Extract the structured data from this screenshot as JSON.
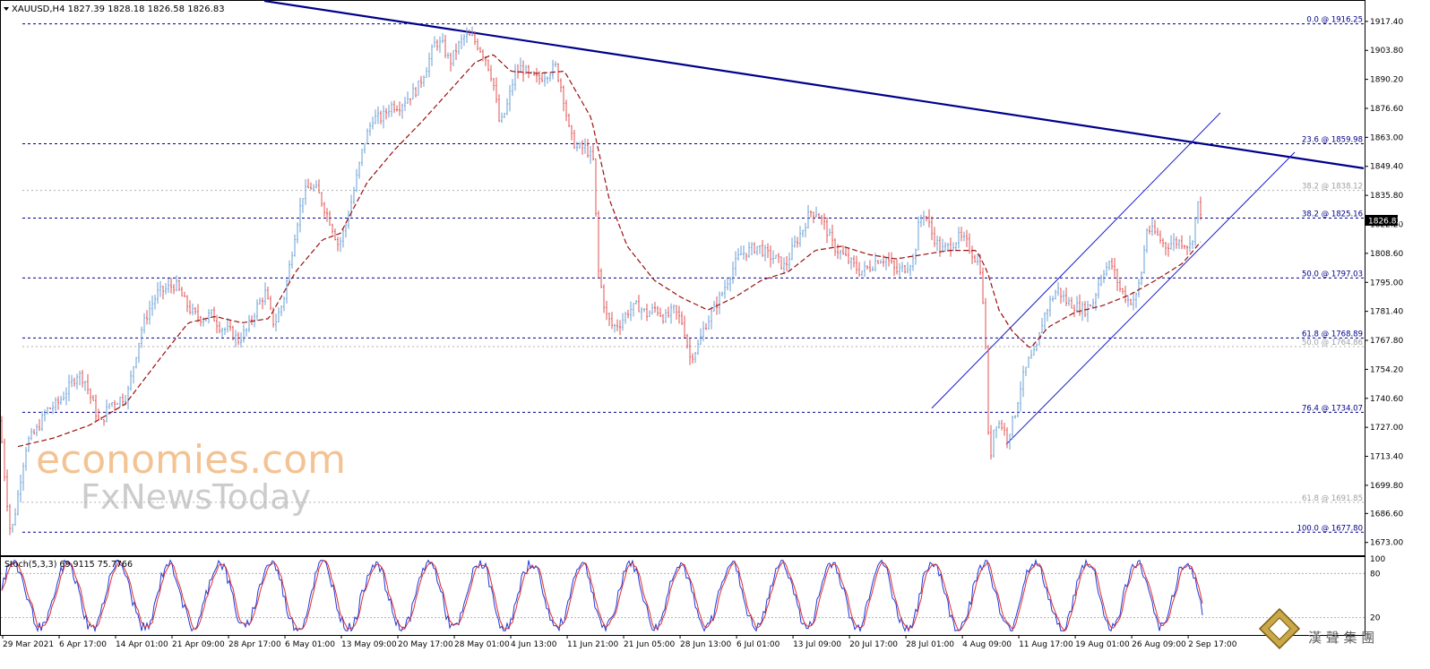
{
  "header": {
    "symbol_line": "XAUUSD,H4  1827.39 1828.18 1826.58 1826.83"
  },
  "stoch": {
    "label": "Stoch(5,3,3) 69.9115 75.7766",
    "scale_labels": [
      "100",
      "80",
      "20"
    ],
    "k_color": "#1e3adc",
    "d_color": "#e03030"
  },
  "watermark": {
    "line1": "economies.com",
    "line2": "FxNewsToday",
    "corner_logo": "漢 聲 集 團"
  },
  "colors": {
    "up_bar": "#6a9fd4",
    "down_bar": "#e05050",
    "ma_line": "#9a1010",
    "trendline": "#00008b",
    "channel": "#1a1acc",
    "fib_line": "#00008b",
    "fib_line_light": "#b0b0b0",
    "price_box": "#000000"
  },
  "chart_data": {
    "type": "line",
    "title": "XAUUSD,H4",
    "ohlc_last": {
      "open": 1827.39,
      "high": 1828.18,
      "low": 1826.58,
      "close": 1826.83
    },
    "current_price": "1826.83",
    "ylim": [
      1667,
      1927
    ],
    "y_ticks": [
      1917.4,
      1903.8,
      1890.2,
      1876.6,
      1863.0,
      1849.4,
      1835.8,
      1822.2,
      1808.6,
      1795.0,
      1781.4,
      1767.8,
      1754.2,
      1740.6,
      1727.0,
      1713.4,
      1699.8,
      1686.6,
      1673.0
    ],
    "y_tick_labels": [
      "1917.40",
      "1903.80",
      "1890.20",
      "1876.60",
      "1863.00",
      "1849.40",
      "1835.80",
      "1822.20",
      "1808.60",
      "1795.00",
      "1781.40",
      "1767.80",
      "1754.20",
      "1740.60",
      "1727.00",
      "1713.40",
      "1699.80",
      "1686.60",
      "1673.00"
    ],
    "x_labels": [
      "29 Mar 2021",
      "6 Apr 17:00",
      "14 Apr 01:00",
      "21 Apr 09:00",
      "28 Apr 17:00",
      "6 May 01:00",
      "13 May 09:00",
      "20 May 17:00",
      "28 May 01:00",
      "4 Jun 13:00",
      "11 Jun 21:00",
      "21 Jun 05:00",
      "28 Jun 13:00",
      "6 Jul 01:00",
      "13 Jul 09:00",
      "20 Jul 17:00",
      "28 Jul 01:00",
      "4 Aug 09:00",
      "11 Aug 17:00",
      "19 Aug 01:00",
      "26 Aug 09:00",
      "2 Sep 17:00"
    ],
    "fib_levels": [
      {
        "label": "0.0 @ 1916.25",
        "value": 1916.25,
        "style": "dark"
      },
      {
        "label": "23.6 @ 1859.98",
        "value": 1859.98,
        "style": "dark"
      },
      {
        "label": "38.2 @ 1838.12",
        "value": 1838.12,
        "style": "light"
      },
      {
        "label": "38.2 @ 1825.16",
        "value": 1825.16,
        "style": "dark"
      },
      {
        "label": "50.0 @ 1797.03",
        "value": 1797.03,
        "style": "dark"
      },
      {
        "label": "61.8 @ 1768.89",
        "value": 1768.89,
        "style": "dark"
      },
      {
        "label": "50.0 @ 1764.86",
        "value": 1764.86,
        "style": "light"
      },
      {
        "label": "76.4 @ 1734.07",
        "value": 1734.07,
        "style": "dark"
      },
      {
        "label": "61.8 @ 1691.85",
        "value": 1691.85,
        "style": "light"
      },
      {
        "label": "100.0 @ 1677.80",
        "value": 1677.8,
        "style": "dark"
      }
    ],
    "price_anchors": [
      [
        0,
        1730
      ],
      [
        6,
        1700
      ],
      [
        12,
        1676
      ],
      [
        18,
        1690
      ],
      [
        24,
        1706
      ],
      [
        30,
        1720
      ],
      [
        40,
        1725
      ],
      [
        52,
        1735
      ],
      [
        64,
        1738
      ],
      [
        76,
        1745
      ],
      [
        86,
        1752
      ],
      [
        94,
        1750
      ],
      [
        102,
        1740
      ],
      [
        112,
        1728
      ],
      [
        122,
        1738
      ],
      [
        132,
        1740
      ],
      [
        142,
        1742
      ],
      [
        150,
        1758
      ],
      [
        158,
        1773
      ],
      [
        166,
        1782
      ],
      [
        176,
        1790
      ],
      [
        186,
        1792
      ],
      [
        196,
        1794
      ],
      [
        206,
        1786
      ],
      [
        216,
        1780
      ],
      [
        226,
        1778
      ],
      [
        236,
        1780
      ],
      [
        246,
        1774
      ],
      [
        256,
        1772
      ],
      [
        266,
        1768
      ],
      [
        276,
        1773
      ],
      [
        286,
        1783
      ],
      [
        296,
        1790
      ],
      [
        306,
        1775
      ],
      [
        316,
        1786
      ],
      [
        322,
        1800
      ],
      [
        330,
        1820
      ],
      [
        338,
        1836
      ],
      [
        346,
        1840
      ],
      [
        354,
        1838
      ],
      [
        362,
        1830
      ],
      [
        370,
        1822
      ],
      [
        378,
        1812
      ],
      [
        386,
        1822
      ],
      [
        396,
        1840
      ],
      [
        406,
        1860
      ],
      [
        416,
        1872
      ],
      [
        426,
        1872
      ],
      [
        436,
        1878
      ],
      [
        446,
        1878
      ],
      [
        456,
        1882
      ],
      [
        466,
        1886
      ],
      [
        476,
        1896
      ],
      [
        486,
        1908
      ],
      [
        494,
        1906
      ],
      [
        502,
        1898
      ],
      [
        510,
        1905
      ],
      [
        518,
        1910
      ],
      [
        526,
        1910
      ],
      [
        534,
        1906
      ],
      [
        542,
        1900
      ],
      [
        550,
        1890
      ],
      [
        558,
        1868
      ],
      [
        566,
        1878
      ],
      [
        574,
        1892
      ],
      [
        582,
        1896
      ],
      [
        590,
        1892
      ],
      [
        600,
        1890
      ],
      [
        610,
        1893
      ],
      [
        620,
        1896
      ],
      [
        628,
        1884
      ],
      [
        636,
        1864
      ],
      [
        644,
        1858
      ],
      [
        654,
        1858
      ],
      [
        662,
        1852
      ],
      [
        668,
        1800
      ],
      [
        676,
        1780
      ],
      [
        684,
        1774
      ],
      [
        692,
        1776
      ],
      [
        702,
        1782
      ],
      [
        712,
        1784
      ],
      [
        722,
        1780
      ],
      [
        732,
        1783
      ],
      [
        742,
        1778
      ],
      [
        752,
        1782
      ],
      [
        762,
        1776
      ],
      [
        770,
        1760
      ],
      [
        778,
        1764
      ],
      [
        786,
        1774
      ],
      [
        796,
        1782
      ],
      [
        806,
        1790
      ],
      [
        816,
        1800
      ],
      [
        826,
        1808
      ],
      [
        836,
        1810
      ],
      [
        846,
        1812
      ],
      [
        856,
        1808
      ],
      [
        866,
        1806
      ],
      [
        876,
        1802
      ],
      [
        886,
        1812
      ],
      [
        896,
        1820
      ],
      [
        904,
        1828
      ],
      [
        912,
        1828
      ],
      [
        920,
        1822
      ],
      [
        930,
        1812
      ],
      [
        940,
        1808
      ],
      [
        950,
        1804
      ],
      [
        960,
        1800
      ],
      [
        970,
        1802
      ],
      [
        980,
        1806
      ],
      [
        990,
        1806
      ],
      [
        1000,
        1800
      ],
      [
        1010,
        1802
      ],
      [
        1020,
        1806
      ],
      [
        1026,
        1824
      ],
      [
        1032,
        1828
      ],
      [
        1040,
        1818
      ],
      [
        1050,
        1810
      ],
      [
        1060,
        1812
      ],
      [
        1070,
        1816
      ],
      [
        1078,
        1814
      ],
      [
        1086,
        1808
      ],
      [
        1094,
        1802
      ],
      [
        1100,
        1766
      ],
      [
        1104,
        1708
      ],
      [
        1110,
        1730
      ],
      [
        1118,
        1728
      ],
      [
        1124,
        1722
      ],
      [
        1132,
        1732
      ],
      [
        1140,
        1748
      ],
      [
        1148,
        1758
      ],
      [
        1156,
        1762
      ],
      [
        1164,
        1778
      ],
      [
        1172,
        1786
      ],
      [
        1180,
        1792
      ],
      [
        1190,
        1786
      ],
      [
        1200,
        1784
      ],
      [
        1210,
        1782
      ],
      [
        1220,
        1786
      ],
      [
        1230,
        1800
      ],
      [
        1240,
        1804
      ],
      [
        1250,
        1792
      ],
      [
        1260,
        1786
      ],
      [
        1268,
        1788
      ],
      [
        1274,
        1800
      ],
      [
        1280,
        1820
      ],
      [
        1290,
        1818
      ],
      [
        1300,
        1812
      ],
      [
        1310,
        1814
      ],
      [
        1320,
        1814
      ],
      [
        1328,
        1812
      ],
      [
        1332,
        1818
      ],
      [
        1336,
        1832
      ],
      [
        1342,
        1827
      ]
    ],
    "ma_anchors": [
      [
        20,
        1718
      ],
      [
        60,
        1722
      ],
      [
        100,
        1728
      ],
      [
        140,
        1738
      ],
      [
        180,
        1760
      ],
      [
        210,
        1776
      ],
      [
        240,
        1779
      ],
      [
        270,
        1776
      ],
      [
        300,
        1778
      ],
      [
        330,
        1800
      ],
      [
        360,
        1815
      ],
      [
        380,
        1818
      ],
      [
        410,
        1842
      ],
      [
        440,
        1857
      ],
      [
        470,
        1870
      ],
      [
        500,
        1884
      ],
      [
        530,
        1898
      ],
      [
        550,
        1902
      ],
      [
        570,
        1894
      ],
      [
        600,
        1893
      ],
      [
        630,
        1894
      ],
      [
        660,
        1872
      ],
      [
        680,
        1834
      ],
      [
        700,
        1812
      ],
      [
        730,
        1796
      ],
      [
        760,
        1788
      ],
      [
        790,
        1782
      ],
      [
        820,
        1788
      ],
      [
        850,
        1796
      ],
      [
        880,
        1800
      ],
      [
        910,
        1810
      ],
      [
        940,
        1812
      ],
      [
        970,
        1808
      ],
      [
        1000,
        1806
      ],
      [
        1030,
        1808
      ],
      [
        1060,
        1810
      ],
      [
        1090,
        1810
      ],
      [
        1102,
        1800
      ],
      [
        1115,
        1782
      ],
      [
        1130,
        1772
      ],
      [
        1150,
        1764
      ],
      [
        1170,
        1774
      ],
      [
        1200,
        1781
      ],
      [
        1230,
        1784
      ],
      [
        1260,
        1789
      ],
      [
        1290,
        1796
      ],
      [
        1320,
        1804
      ],
      [
        1342,
        1815
      ]
    ],
    "trendline": {
      "x1": 295,
      "y1": 1927.0,
      "x2": 1522,
      "y2": 1848.5
    },
    "channel_upper": {
      "x1": 1040,
      "y1": 1736.0,
      "x2": 1362,
      "y2": 1874.5
    },
    "channel_lower": {
      "x1": 1123,
      "y1": 1719.0,
      "x2": 1445,
      "y2": 1856.0
    }
  }
}
